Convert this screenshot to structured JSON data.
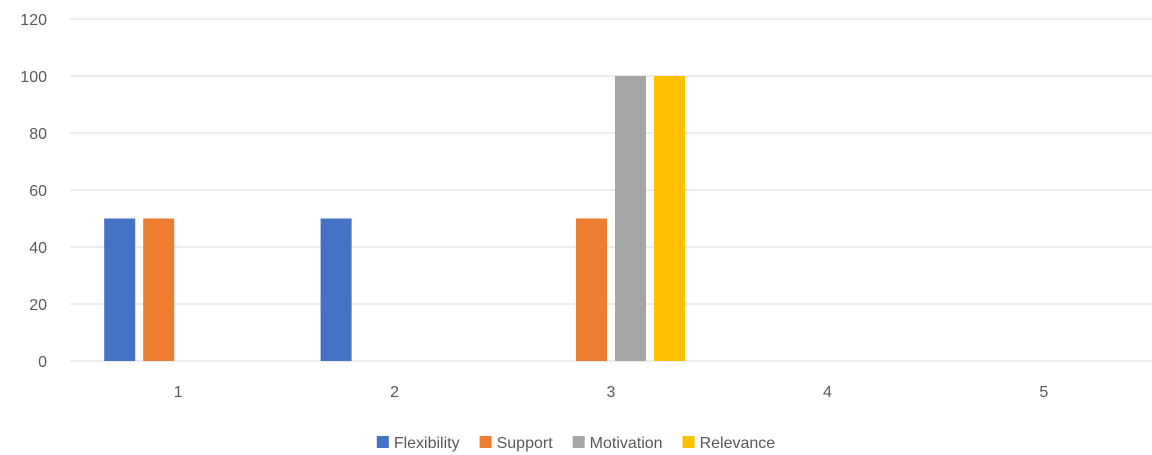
{
  "chart_data": {
    "type": "bar",
    "title": "",
    "xlabel": "",
    "ylabel": "",
    "categories": [
      "1",
      "2",
      "3",
      "4",
      "5"
    ],
    "ylim": [
      0,
      120
    ],
    "yticks": [
      0,
      20,
      40,
      60,
      80,
      100,
      120
    ],
    "grid": true,
    "legend_position": "bottom",
    "series": [
      {
        "name": "Flexibility",
        "color": "#4472C4",
        "values": [
          50,
          50,
          0,
          0,
          0
        ]
      },
      {
        "name": "Support",
        "color": "#ED7D31",
        "values": [
          50,
          0,
          50,
          0,
          0
        ]
      },
      {
        "name": "Motivation",
        "color": "#A5A5A5",
        "values": [
          0,
          0,
          100,
          0,
          0
        ]
      },
      {
        "name": "Relevance",
        "color": "#FFC000",
        "values": [
          0,
          0,
          100,
          0,
          0
        ]
      }
    ]
  }
}
